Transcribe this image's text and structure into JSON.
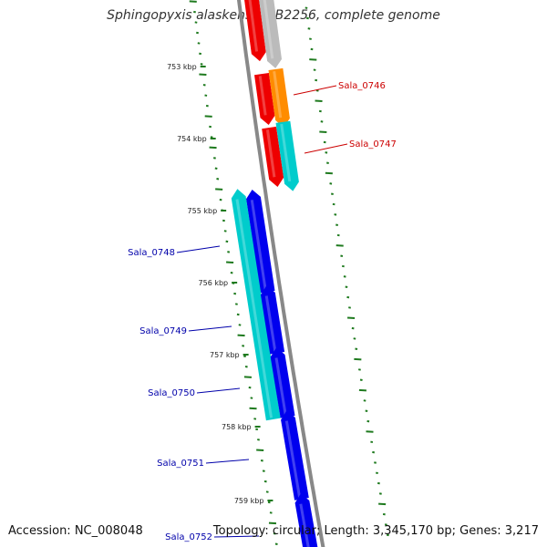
{
  "title": "Sphingopyxis alaskensis RB2256, complete genome",
  "footer": {
    "accession": "Accession: NC_008048",
    "summary": "Topology: circular; Length: 3,345,170 bp; Genes: 3,217"
  },
  "colors": {
    "backbone": "#888888",
    "plus_label": "#cc0000",
    "minus_label": "#0000aa",
    "red_gene": "#ee0000",
    "grey_gene": "#bbbbbb",
    "orange_gene": "#ff8c00",
    "cyan_gene": "#00cccc",
    "blue_gene": "#0000ee",
    "gc_ticks": "#1e7a1e"
  },
  "kbp_labels": [
    "753 kbp",
    "754 kbp",
    "755 kbp",
    "756 kbp",
    "757 kbp",
    "758 kbp",
    "759 kbp"
  ],
  "plus_labels": [
    "Sala_0746",
    "Sala_0747"
  ],
  "minus_labels": [
    "Sala_0748",
    "Sala_0749",
    "Sala_0750",
    "Sala_0751",
    "Sala_0752"
  ]
}
